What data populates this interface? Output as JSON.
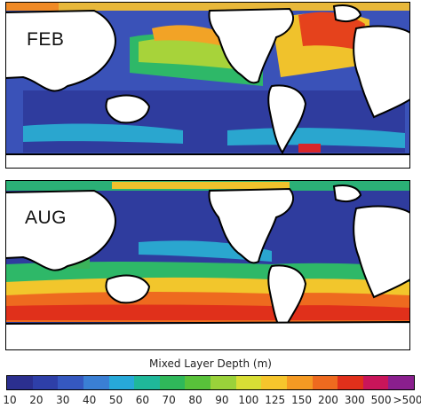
{
  "maps": [
    {
      "label": "FEB"
    },
    {
      "label": "AUG"
    }
  ],
  "legend": {
    "title": "Mixed Layer Depth (m)",
    "ticks": [
      "10",
      "20",
      "30",
      "40",
      "50",
      "60",
      "70",
      "80",
      "90",
      "100",
      "125",
      "150",
      "200",
      "300",
      "500",
      ">500"
    ],
    "colors": [
      "#2b2f8f",
      "#2e3fa8",
      "#3558c0",
      "#3a7fd4",
      "#27a9d9",
      "#1fb89a",
      "#2fb85a",
      "#58c23a",
      "#9ad23a",
      "#d8de35",
      "#f6c52c",
      "#f59a23",
      "#ee6a1f",
      "#e0301b",
      "#c9155a",
      "#8a1f8e"
    ]
  }
}
